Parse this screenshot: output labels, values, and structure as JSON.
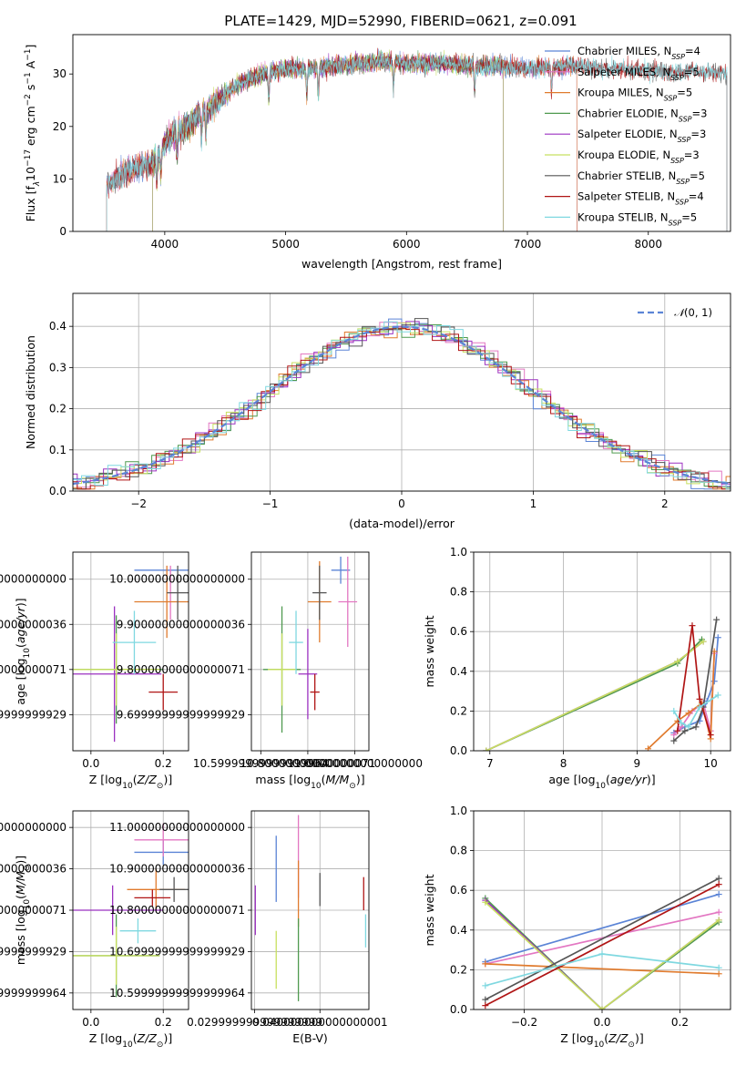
{
  "figure_title": "PLATE=1429, MJD=52990, FIBERID=0621, z=0.091",
  "colors": {
    "Chabrier MILES": "#5b84d6",
    "Salpeter MILES": "#e377c2",
    "Kroupa MILES": "#e07b2e",
    "Chabrier ELODIE": "#4f9a4f",
    "Salpeter ELODIE": "#9b30c0",
    "Kroupa ELODIE": "#c8e060",
    "Chabrier STELIB": "#555555",
    "Salpeter STELIB": "#b01515",
    "Kroupa STELIB": "#7fd8e0"
  },
  "chart_data": [
    {
      "id": "spectrum",
      "type": "line",
      "title": "PLATE=1429, MJD=52990, FIBERID=0621, z=0.091",
      "xlabel": "wavelength [Angstrom, rest frame]",
      "ylabel": "Flux [f$_\\lambda$10$^{-17}$ erg cm$^{-2}$ s$^{-1}$ A$^{-1}$]",
      "ylabel_parts": {
        "main": "Flux [f",
        "sub1": "λ",
        "mid": "10",
        "sup1": "−17",
        "tail1": " erg cm",
        "sup2": "−2",
        "tail2": " s",
        "sup3": "−1",
        "tail3": " A",
        "sup4": "−1",
        "end": "]"
      },
      "xlim": [
        3240,
        8680
      ],
      "ylim": [
        0,
        37.5
      ],
      "xticks": [
        4000,
        5000,
        6000,
        7000,
        8000
      ],
      "yticks": [
        0,
        10,
        20,
        30
      ],
      "grid": false,
      "legend_position": "top-right",
      "continuum": {
        "x": [
          3520,
          3600,
          3700,
          3800,
          3900,
          4000,
          4100,
          4200,
          4300,
          4400,
          4500,
          4600,
          4700,
          4800,
          4900,
          5000,
          5200,
          5400,
          5600,
          5800,
          6000,
          6200,
          6400,
          6600,
          6800,
          7000,
          7200,
          7400,
          7600,
          7800,
          8000,
          8200,
          8400,
          8650
        ],
        "y": [
          9,
          10,
          11.5,
          12.5,
          13,
          17,
          19,
          20,
          23,
          24,
          26,
          28,
          29,
          30,
          30.5,
          31,
          31,
          31.5,
          32,
          32.5,
          32,
          32,
          32,
          31.5,
          31.5,
          31,
          31.5,
          31.5,
          31,
          31,
          30.5,
          30.5,
          30.5,
          30
        ]
      },
      "series": [
        {
          "name": "Chabrier MILES",
          "nssp": "4",
          "xrange": [
            3520,
            7410
          ]
        },
        {
          "name": "Salpeter MILES",
          "nssp": "5",
          "xrange": [
            3520,
            7410
          ]
        },
        {
          "name": "Kroupa MILES",
          "nssp": "5",
          "xrange": [
            3520,
            7410
          ]
        },
        {
          "name": "Chabrier ELODIE",
          "nssp": "3",
          "xrange": [
            3900,
            6800
          ]
        },
        {
          "name": "Salpeter ELODIE",
          "nssp": "3",
          "xrange": [
            3900,
            6800
          ]
        },
        {
          "name": "Kroupa ELODIE",
          "nssp": "3",
          "xrange": [
            3900,
            6800
          ]
        },
        {
          "name": "Chabrier STELIB",
          "nssp": "5",
          "xrange": [
            3520,
            8650
          ]
        },
        {
          "name": "Salpeter STELIB",
          "nssp": "4",
          "xrange": [
            3520,
            8650
          ]
        },
        {
          "name": "Kroupa STELIB",
          "nssp": "5",
          "xrange": [
            3520,
            8650
          ]
        }
      ]
    },
    {
      "id": "residuals",
      "type": "line",
      "xlabel": "(data-model)/error",
      "ylabel": "Normed distribution",
      "xlim": [
        -2.5,
        2.5
      ],
      "ylim": [
        0,
        0.48
      ],
      "xticks": [
        -2,
        -1,
        0,
        1,
        2
      ],
      "yticks": [
        0.0,
        0.1,
        0.2,
        0.3,
        0.4
      ],
      "grid": true,
      "legend_position": "top-right",
      "reference_curve": {
        "name": "𝒩(0, 1)",
        "label_main": "𝒩",
        "label_args": "(0, 1)",
        "style": "dashed",
        "color": "#5b84d6"
      },
      "histogram_bin_width": 0.1,
      "histogram_note": "9 step histograms, one per model, scattering around the N(0,1) density"
    },
    {
      "id": "age_vs_Z",
      "type": "scatter",
      "xlabel": "Z [log$_{10}$(Z/Z$_\\odot$)]",
      "ylabel": "age  [log$_{10}$(age/yr)]",
      "xlim": [
        -0.05,
        0.27
      ],
      "ylim": [
        9.62,
        10.06
      ],
      "xticks": [
        0.0,
        0.2
      ],
      "yticks": [
        9.7,
        9.8,
        9.9,
        10.0
      ],
      "grid": true,
      "points": [
        {
          "series": "Chabrier MILES",
          "x": 0.21,
          "xerr": 0.09,
          "y": 10.02,
          "yerr": 0
        },
        {
          "series": "Salpeter MILES",
          "x": 0.22,
          "xerr": 0,
          "y": 9.97,
          "yerr": 0.06
        },
        {
          "series": "Kroupa MILES",
          "x": 0.21,
          "xerr": 0.09,
          "y": 9.95,
          "yerr": 0.08
        },
        {
          "series": "Chabrier ELODIE",
          "x": 0.07,
          "xerr": 0.13,
          "y": 9.8,
          "yerr": 0.12
        },
        {
          "series": "Salpeter ELODIE",
          "x": 0.065,
          "xerr": 0.13,
          "y": 9.79,
          "yerr": 0.15
        },
        {
          "series": "Kroupa ELODIE",
          "x": 0.07,
          "xerr": 0.12,
          "y": 9.8,
          "yerr": 0.08
        },
        {
          "series": "Chabrier STELIB",
          "x": 0.24,
          "xerr": 0.03,
          "y": 9.97,
          "yerr": 0.06
        },
        {
          "series": "Salpeter STELIB",
          "x": 0.2,
          "xerr": 0.04,
          "y": 9.75,
          "yerr": 0.04
        },
        {
          "series": "Kroupa STELIB",
          "x": 0.12,
          "xerr": 0.06,
          "y": 9.86,
          "yerr": 0.07
        }
      ]
    },
    {
      "id": "age_vs_mass",
      "type": "scatter",
      "xlabel": "mass [log$_{10}$(M/M$_\\odot$)]",
      "ylabel": "",
      "xlim": [
        10.56,
        11.06
      ],
      "ylim": [
        9.62,
        10.06
      ],
      "xticks": [
        10.6,
        10.8,
        11.0
      ],
      "yticks": [
        9.7,
        9.8,
        9.9,
        10.0
      ],
      "grid": true,
      "points": [
        {
          "series": "Chabrier MILES",
          "x": 10.94,
          "xerr": 0.04,
          "y": 10.02,
          "yerr": 0.03
        },
        {
          "series": "Salpeter MILES",
          "x": 10.97,
          "xerr": 0.04,
          "y": 9.95,
          "yerr": 0.1
        },
        {
          "series": "Kroupa MILES",
          "x": 10.85,
          "xerr": 0.05,
          "y": 9.95,
          "yerr": 0.09
        },
        {
          "series": "Chabrier ELODIE",
          "x": 10.69,
          "xerr": 0.08,
          "y": 9.8,
          "yerr": 0.14
        },
        {
          "series": "Salpeter ELODIE",
          "x": 10.8,
          "xerr": 0.04,
          "y": 9.79,
          "yerr": 0.1
        },
        {
          "series": "Kroupa ELODIE",
          "x": 10.69,
          "xerr": 0.06,
          "y": 9.8,
          "yerr": 0.08
        },
        {
          "series": "Chabrier STELIB",
          "x": 10.85,
          "xerr": 0.03,
          "y": 9.97,
          "yerr": 0.06
        },
        {
          "series": "Salpeter STELIB",
          "x": 10.83,
          "xerr": 0.02,
          "y": 9.75,
          "yerr": 0.04
        },
        {
          "series": "Kroupa STELIB",
          "x": 10.75,
          "xerr": 0.03,
          "y": 9.86,
          "yerr": 0.07
        }
      ]
    },
    {
      "id": "mass_weight_vs_age",
      "type": "line",
      "xlabel": "age  [log$_{10}$(age/yr)]",
      "ylabel": "mass weight",
      "xlim": [
        6.78,
        10.27
      ],
      "ylim": [
        0,
        1.0
      ],
      "xticks": [
        7,
        8,
        9,
        10
      ],
      "yticks": [
        0.0,
        0.2,
        0.4,
        0.6,
        0.8,
        1.0
      ],
      "grid": true,
      "series": [
        {
          "name": "Chabrier MILES",
          "x": [
            9.5,
            9.65,
            9.85,
            9.95,
            10.05,
            10.1
          ],
          "y": [
            0.09,
            0.12,
            0.15,
            0.25,
            0.35,
            0.57
          ]
        },
        {
          "name": "Salpeter MILES",
          "x": [
            9.5,
            9.6,
            9.75,
            9.9,
            10.0,
            10.05
          ],
          "y": [
            0.08,
            0.12,
            0.2,
            0.24,
            0.1,
            0.49
          ]
        },
        {
          "name": "Kroupa MILES",
          "x": [
            9.15,
            9.55,
            9.7,
            9.88,
            10.0,
            10.05
          ],
          "y": [
            0.01,
            0.15,
            0.19,
            0.24,
            0.06,
            0.5
          ]
        },
        {
          "name": "Chabrier ELODIE",
          "x": [
            6.95,
            9.55,
            9.88
          ],
          "y": [
            0.0,
            0.44,
            0.56
          ]
        },
        {
          "name": "Salpeter ELODIE",
          "x": [
            6.95,
            9.55,
            9.9
          ],
          "y": [
            0.0,
            0.45,
            0.55
          ]
        },
        {
          "name": "Kroupa ELODIE",
          "x": [
            6.95,
            9.55,
            9.9
          ],
          "y": [
            0.0,
            0.45,
            0.55
          ]
        },
        {
          "name": "Chabrier STELIB",
          "x": [
            9.5,
            9.65,
            9.8,
            9.9,
            10.08
          ],
          "y": [
            0.05,
            0.1,
            0.12,
            0.22,
            0.66
          ]
        },
        {
          "name": "Salpeter STELIB",
          "x": [
            9.55,
            9.75,
            9.85,
            10.0
          ],
          "y": [
            0.1,
            0.63,
            0.26,
            0.08
          ]
        },
        {
          "name": "Kroupa STELIB",
          "x": [
            9.5,
            9.6,
            9.7,
            9.85,
            10.1
          ],
          "y": [
            0.2,
            0.14,
            0.12,
            0.22,
            0.28
          ]
        }
      ]
    },
    {
      "id": "mass_vs_Z",
      "type": "scatter",
      "xlabel": "Z [log$_{10}$(Z/Z$_\\odot$)]",
      "ylabel": "mass [log$_{10}$(M/M$_\\odot$)]",
      "xlim": [
        -0.05,
        0.27
      ],
      "ylim": [
        10.56,
        11.04
      ],
      "xticks": [
        0.0,
        0.2
      ],
      "yticks": [
        10.6,
        10.7,
        10.8,
        10.9,
        11.0
      ],
      "grid": true,
      "points": [
        {
          "series": "Chabrier MILES",
          "x": 0.2,
          "xerr": 0.08,
          "y": 10.94,
          "yerr": 0.03
        },
        {
          "series": "Salpeter MILES",
          "x": 0.2,
          "xerr": 0.08,
          "y": 10.97,
          "yerr": 0.04
        },
        {
          "series": "Kroupa MILES",
          "x": 0.18,
          "xerr": 0.08,
          "y": 10.85,
          "yerr": 0.05
        },
        {
          "series": "Chabrier ELODIE",
          "x": 0.07,
          "xerr": 0.12,
          "y": 10.69,
          "yerr": 0.1
        },
        {
          "series": "Salpeter ELODIE",
          "x": 0.06,
          "xerr": 0.14,
          "y": 10.8,
          "yerr": 0.06
        },
        {
          "series": "Kroupa ELODIE",
          "x": 0.07,
          "xerr": 0.12,
          "y": 10.69,
          "yerr": 0.07
        },
        {
          "series": "Chabrier STELIB",
          "x": 0.23,
          "xerr": 0.04,
          "y": 10.85,
          "yerr": 0.03
        },
        {
          "series": "Salpeter STELIB",
          "x": 0.17,
          "xerr": 0.05,
          "y": 10.83,
          "yerr": 0.02
        },
        {
          "series": "Kroupa STELIB",
          "x": 0.13,
          "xerr": 0.05,
          "y": 10.75,
          "yerr": 0.03
        }
      ]
    },
    {
      "id": "mass_vs_EBV",
      "type": "scatter",
      "xlabel": "E(B-V)",
      "ylabel": "",
      "xlim": [
        0.0295,
        0.0475
      ],
      "ylim": [
        10.56,
        11.04
      ],
      "xticks": [
        0.03,
        0.04
      ],
      "yticks": [
        10.6,
        10.7,
        10.8,
        10.9,
        11.0
      ],
      "grid": true,
      "points": [
        {
          "series": "Chabrier MILES",
          "x": 0.0333,
          "xerr": 0,
          "y": 10.9,
          "yerr": 0.08
        },
        {
          "series": "Salpeter MILES",
          "x": 0.0367,
          "xerr": 0,
          "y": 10.93,
          "yerr": 0.1
        },
        {
          "series": "Kroupa MILES",
          "x": 0.0367,
          "xerr": 0,
          "y": 10.84,
          "yerr": 0.08
        },
        {
          "series": "Chabrier ELODIE",
          "x": 0.0367,
          "xerr": 0,
          "y": 10.68,
          "yerr": 0.1
        },
        {
          "series": "Salpeter ELODIE",
          "x": 0.0301,
          "xerr": 0,
          "y": 10.8,
          "yerr": 0.06
        },
        {
          "series": "Kroupa ELODIE",
          "x": 0.0333,
          "xerr": 0,
          "y": 10.68,
          "yerr": 0.07
        },
        {
          "series": "Chabrier STELIB",
          "x": 0.04,
          "xerr": 0,
          "y": 10.85,
          "yerr": 0.04
        },
        {
          "series": "Salpeter STELIB",
          "x": 0.0467,
          "xerr": 0,
          "y": 10.84,
          "yerr": 0.04
        },
        {
          "series": "Kroupa STELIB",
          "x": 0.047,
          "xerr": 0,
          "y": 10.75,
          "yerr": 0.04
        }
      ]
    },
    {
      "id": "mass_weight_vs_Z",
      "type": "line",
      "xlabel": "Z [log$_{10}$(Z/Z$_\\odot$)]",
      "ylabel": "mass weight",
      "xlim": [
        -0.33,
        0.33
      ],
      "ylim": [
        0,
        1.0
      ],
      "xticks": [
        -0.2,
        0.0,
        0.2
      ],
      "yticks": [
        0.0,
        0.2,
        0.4,
        0.6,
        0.8,
        1.0
      ],
      "grid": true,
      "series": [
        {
          "name": "Chabrier MILES",
          "x": [
            -0.3,
            0.3
          ],
          "y": [
            0.24,
            0.58
          ]
        },
        {
          "name": "Salpeter MILES",
          "x": [
            -0.3,
            0.3
          ],
          "y": [
            0.23,
            0.49
          ]
        },
        {
          "name": "Kroupa MILES",
          "x": [
            -0.3,
            0.3
          ],
          "y": [
            0.23,
            0.18
          ]
        },
        {
          "name": "Chabrier ELODIE",
          "x": [
            -0.3,
            0.0,
            0.3
          ],
          "y": [
            0.56,
            0.0,
            0.44
          ]
        },
        {
          "name": "Salpeter ELODIE",
          "x": [
            -0.3,
            0.0,
            0.3
          ],
          "y": [
            0.55,
            0.0,
            0.45
          ]
        },
        {
          "name": "Kroupa ELODIE",
          "x": [
            -0.3,
            0.0,
            0.3
          ],
          "y": [
            0.54,
            0.0,
            0.45
          ]
        },
        {
          "name": "Chabrier STELIB",
          "x": [
            -0.3,
            0.3
          ],
          "y": [
            0.05,
            0.66
          ]
        },
        {
          "name": "Salpeter STELIB",
          "x": [
            -0.3,
            0.3
          ],
          "y": [
            0.02,
            0.63
          ]
        },
        {
          "name": "Kroupa STELIB",
          "x": [
            -0.3,
            0.0,
            0.3
          ],
          "y": [
            0.12,
            0.28,
            0.21
          ]
        }
      ]
    }
  ]
}
